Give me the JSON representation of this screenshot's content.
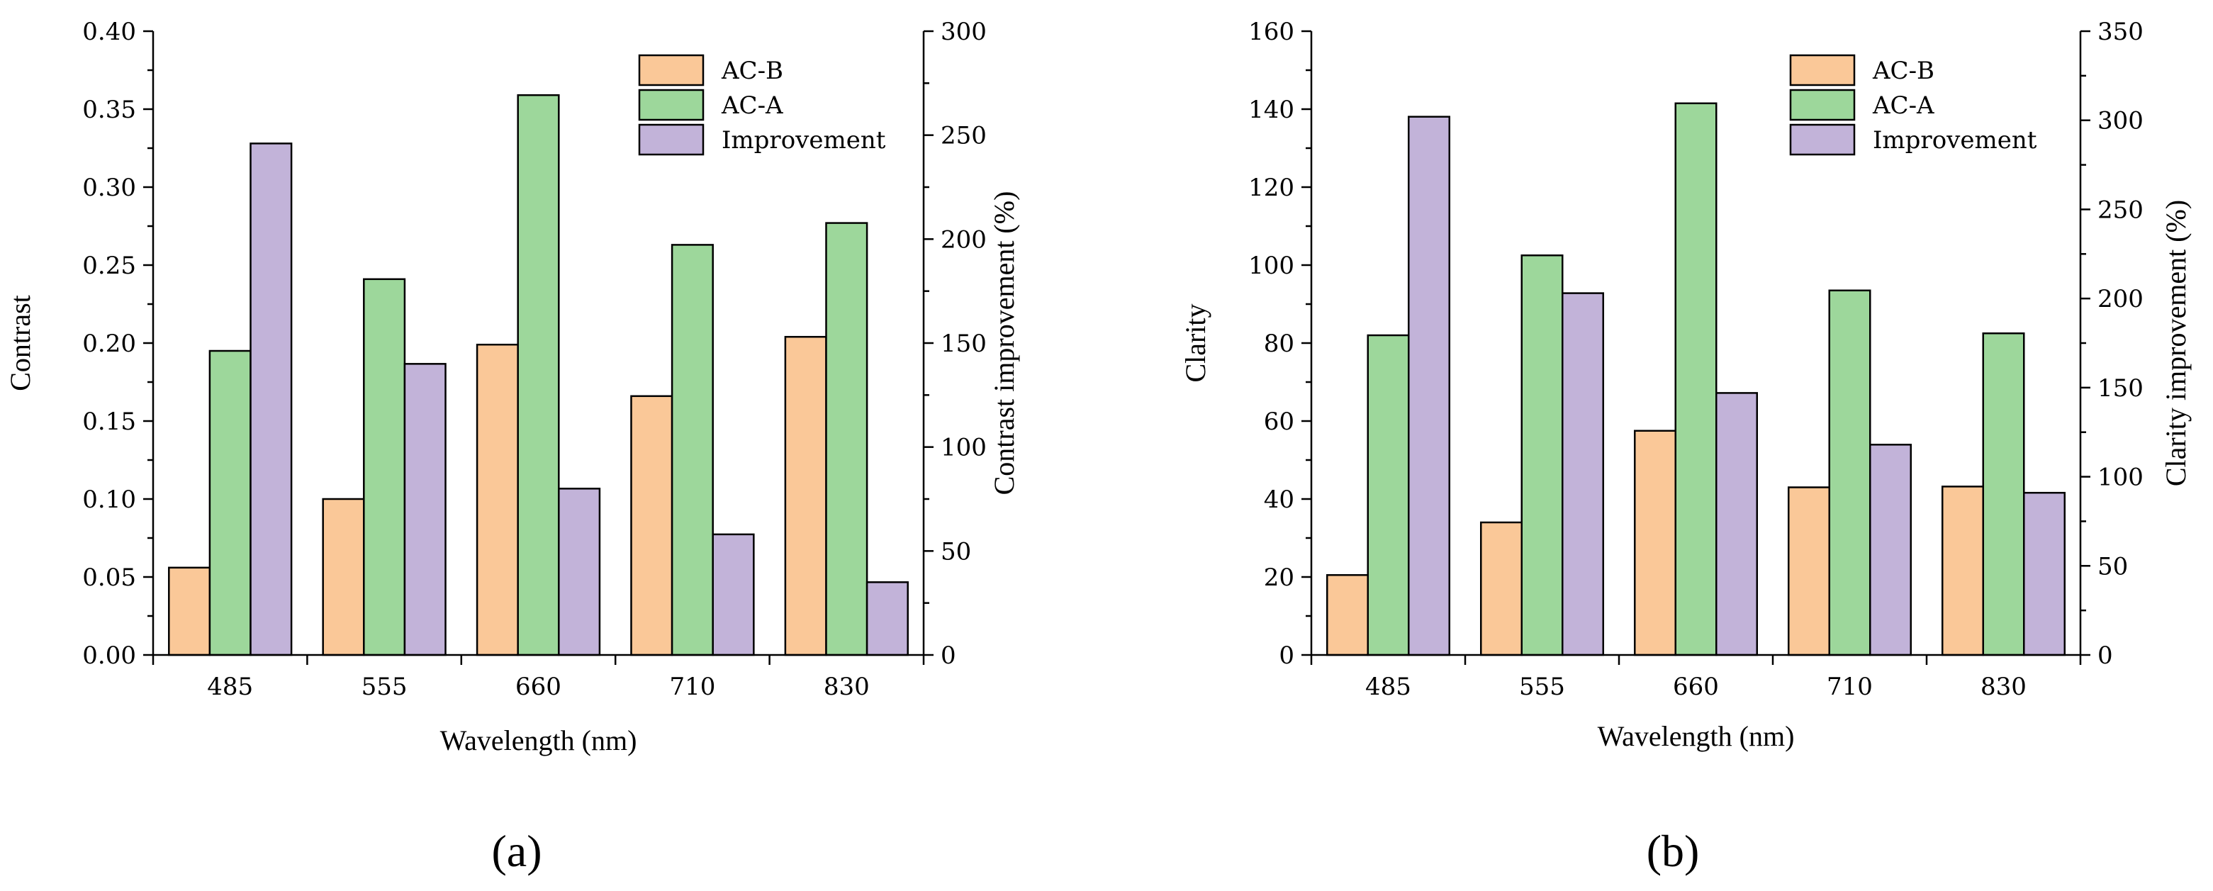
{
  "chart_data": [
    {
      "type": "bar",
      "panel_label": "(a)",
      "categories": [
        "485",
        "555",
        "660",
        "710",
        "830"
      ],
      "xlabel": "Wavelength (nm)",
      "ylabel": "Contrast",
      "ylim": [
        0,
        0.4
      ],
      "yticks": [
        "0.00",
        "0.05",
        "0.10",
        "0.15",
        "0.20",
        "0.25",
        "0.30",
        "0.35",
        "0.40"
      ],
      "y2label": "Contrast improvement (%)",
      "y2lim": [
        0,
        300
      ],
      "y2ticks": [
        "0",
        "50",
        "100",
        "150",
        "200",
        "250",
        "300"
      ],
      "legend_position": "top-right",
      "series": [
        {
          "name": "AC-B",
          "axis": "left",
          "color": "#fac898",
          "values": [
            0.056,
            0.1,
            0.199,
            0.166,
            0.204
          ]
        },
        {
          "name": "AC-A",
          "axis": "left",
          "color": "#9dd79b",
          "values": [
            0.195,
            0.241,
            0.359,
            0.263,
            0.277
          ]
        },
        {
          "name": "Improvement",
          "axis": "right",
          "color": "#c2b3d9",
          "values": [
            246,
            140,
            80,
            58,
            35
          ]
        }
      ]
    },
    {
      "type": "bar",
      "panel_label": "(b)",
      "categories": [
        "485",
        "555",
        "660",
        "710",
        "830"
      ],
      "xlabel": "Wavelength (nm)",
      "ylabel": "Clarity",
      "ylim": [
        0,
        160
      ],
      "yticks": [
        "0",
        "20",
        "40",
        "60",
        "80",
        "100",
        "120",
        "140",
        "160"
      ],
      "y2label": "Clarity improvement (%)",
      "y2lim": [
        0,
        350
      ],
      "y2ticks": [
        "0",
        "50",
        "100",
        "150",
        "200",
        "250",
        "300",
        "350"
      ],
      "legend_position": "top-right",
      "series": [
        {
          "name": "AC-B",
          "axis": "left",
          "color": "#fac898",
          "values": [
            20.5,
            34,
            57.5,
            43,
            43.2
          ]
        },
        {
          "name": "AC-A",
          "axis": "left",
          "color": "#9dd79b",
          "values": [
            82,
            102.5,
            141.5,
            93.5,
            82.5
          ]
        },
        {
          "name": "Improvement",
          "axis": "right",
          "color": "#c2b3d9",
          "values": [
            302,
            203,
            147,
            118,
            91
          ]
        }
      ]
    }
  ]
}
